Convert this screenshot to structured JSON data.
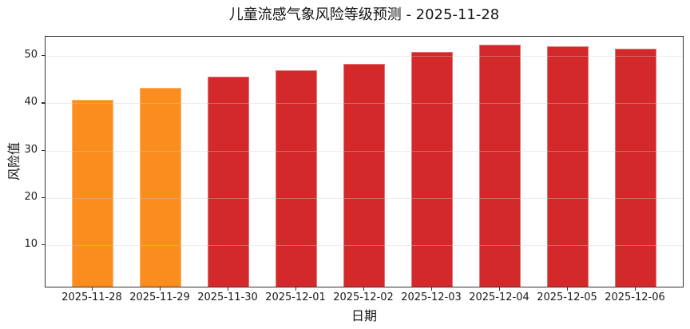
{
  "chart_data": {
    "type": "bar",
    "title": "儿童流感气象风险等级预测 - 2025-11-28",
    "xlabel": "日期",
    "ylabel": "风险值",
    "categories": [
      "2025-11-28",
      "2025-11-29",
      "2025-11-30",
      "2025-12-01",
      "2025-12-02",
      "2025-12-03",
      "2025-12-04",
      "2025-12-05",
      "2025-12-06"
    ],
    "values": [
      40.4,
      43.0,
      45.2,
      46.6,
      48.0,
      50.5,
      52.1,
      51.7,
      51.2
    ],
    "bar_colors": [
      "#FB8C1E",
      "#FB8C1E",
      "#D3292B",
      "#D3292B",
      "#D3292B",
      "#D3292B",
      "#D3292B",
      "#D3292B",
      "#D3292B"
    ],
    "yticks": [
      10,
      20,
      30,
      40,
      50
    ],
    "ylim": [
      0.9,
      54.05
    ],
    "grid": true,
    "legend": false,
    "background": "#ffffff"
  }
}
